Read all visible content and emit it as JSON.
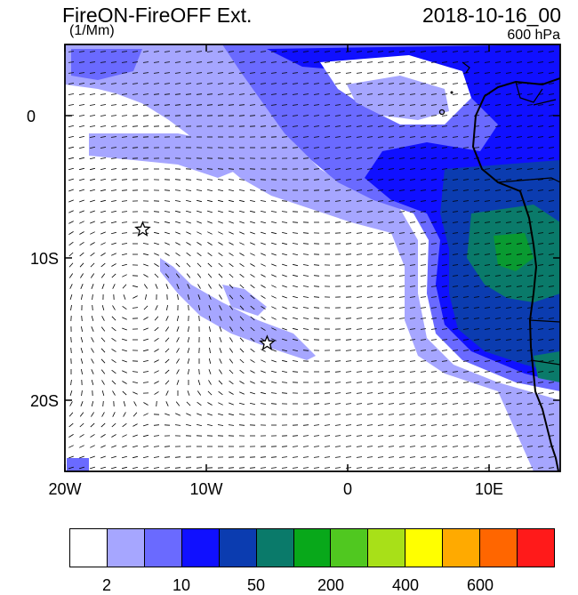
{
  "header": {
    "title": "FireON-FireOFF Ext.",
    "units": "(1/Mm)",
    "datetime": "2018-10-16_00",
    "level": "600 hPa"
  },
  "axes": {
    "lon_labels": [
      "20W",
      "10W",
      "0",
      "10E"
    ],
    "lat_labels": [
      "0",
      "10S",
      "20S"
    ]
  },
  "colorbar": {
    "colors": [
      "#ffffff",
      "#a6a6ff",
      "#6a6aff",
      "#1010ff",
      "#0b3cb0",
      "#0a7a6a",
      "#08a81a",
      "#50c820",
      "#a8e018",
      "#ffff00",
      "#ffaa00",
      "#ff6600",
      "#ff1a1a"
    ],
    "labels": [
      "2",
      "10",
      "50",
      "200",
      "400",
      "600"
    ]
  },
  "markers": {
    "stars": [
      {
        "lon": -14.5,
        "lat": -8
      },
      {
        "lon": -5.7,
        "lat": -16
      }
    ]
  }
}
